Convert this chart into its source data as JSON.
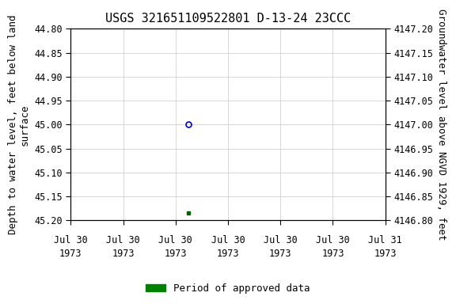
{
  "title": "USGS 321651109522801 D-13-24 23CCC",
  "ylabel_left": "Depth to water level, feet below land\nsurface",
  "ylabel_right": "Groundwater level above NGVD 1929, feet",
  "ylim_left_top": 44.8,
  "ylim_left_bottom": 45.2,
  "ylim_right_bottom": 4146.8,
  "ylim_right_top": 4147.2,
  "left_yticks": [
    44.8,
    44.85,
    44.9,
    44.95,
    45.0,
    45.05,
    45.1,
    45.15,
    45.2
  ],
  "right_yticks": [
    4147.2,
    4147.15,
    4147.1,
    4147.05,
    4147.0,
    4146.95,
    4146.9,
    4146.85,
    4146.8
  ],
  "blue_point_x_hours": 9.0,
  "blue_point_y": 45.0,
  "blue_point_color": "#0000cc",
  "green_point_x_hours": 9.0,
  "green_point_y": 45.185,
  "green_point_color": "#006400",
  "xlim_start_hours": 0,
  "xlim_end_hours": 24,
  "n_xticks": 7,
  "xtick_hours": [
    0,
    4,
    8,
    12,
    16,
    20,
    24
  ],
  "xtick_line1": [
    "Jul 30",
    "Jul 30",
    "Jul 30",
    "Jul 30",
    "Jul 30",
    "Jul 30",
    "Jul 31"
  ],
  "xtick_line2": [
    "1973",
    "1973",
    "1973",
    "1973",
    "1973",
    "1973",
    "1973"
  ],
  "legend_label": "Period of approved data",
  "legend_color": "#008000",
  "bg_color": "#ffffff",
  "grid_color": "#c8c8c8",
  "title_fontsize": 11,
  "label_fontsize": 9,
  "tick_fontsize": 8.5
}
